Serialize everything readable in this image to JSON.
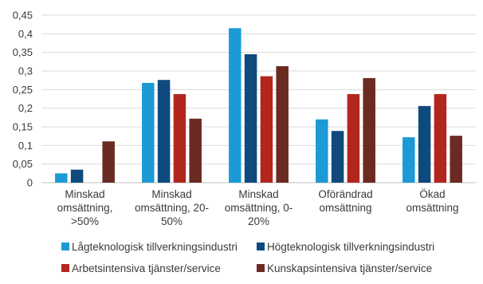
{
  "chart_data": {
    "type": "bar",
    "categories": [
      [
        "Minskad",
        "omsättning,",
        ">50%"
      ],
      [
        "Minskad",
        "omsättning, 20-",
        "50%"
      ],
      [
        "Minskad",
        "omsättning, 0-",
        "20%"
      ],
      [
        "Oförändrad",
        "omsättning"
      ],
      [
        "Ökad",
        "omsättning"
      ]
    ],
    "y_ticks": [
      "0",
      "0,05",
      "0,1",
      "0,15",
      "0,2",
      "0,25",
      "0,3",
      "0,35",
      "0,4",
      "0,45"
    ],
    "ylim": [
      0,
      0.45
    ],
    "grid": true,
    "legend_position": "bottom",
    "series": [
      {
        "name": "Lågteknologisk tillverkningsindustri",
        "color": "#1B9AD6",
        "values": [
          0.025,
          0.268,
          0.415,
          0.17,
          0.122
        ]
      },
      {
        "name": "Högteknologisk tillverkningsindustri",
        "color": "#0E4A7E",
        "values": [
          0.035,
          0.276,
          0.345,
          0.139,
          0.206
        ]
      },
      {
        "name": "Arbetsintensiva tjänster/service",
        "color": "#B3261E",
        "values": [
          0.0,
          0.238,
          0.286,
          0.238,
          0.238
        ]
      },
      {
        "name": "Kunskapsintensiva tjänster/service",
        "color": "#6B2A22",
        "values": [
          0.111,
          0.172,
          0.313,
          0.281,
          0.126
        ]
      }
    ]
  }
}
